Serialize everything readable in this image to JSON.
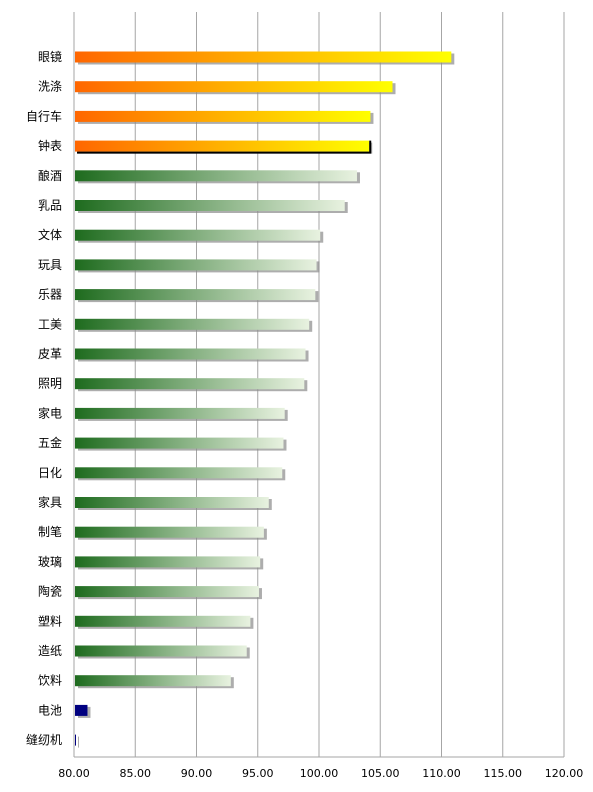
{
  "chart_data": {
    "type": "bar",
    "orientation": "horizontal",
    "categories": [
      "眼镜",
      "洗涤",
      "自行车",
      "钟表",
      "酿酒",
      "乳品",
      "文体",
      "玩具",
      "乐器",
      "工美",
      "皮革",
      "照明",
      "家电",
      "五金",
      "日化",
      "家具",
      "制笔",
      "玻璃",
      "陶瓷",
      "塑料",
      "造纸",
      "饮料",
      "电池",
      "缝纫机"
    ],
    "values": [
      110.8,
      106.0,
      104.2,
      104.1,
      103.1,
      102.1,
      100.1,
      99.8,
      99.7,
      99.2,
      98.9,
      98.8,
      97.2,
      97.1,
      97.0,
      95.9,
      95.5,
      95.2,
      95.1,
      94.4,
      94.1,
      92.8,
      81.1,
      80.1
    ],
    "xlim": [
      80,
      120
    ],
    "x_ticks": [
      "80.00",
      "85.00",
      "90.00",
      "95.00",
      "100.00",
      "105.00",
      "110.00",
      "115.00",
      "120.00"
    ],
    "grid": "vertical",
    "title": "",
    "xlabel": "",
    "ylabel": "",
    "colors": {
      "orange_start": "#ff6600",
      "orange_end": "#ffff00",
      "green_start": "#1e6b1e",
      "green_end": "#e8f2e0",
      "navy": "#000080",
      "shadow": "#8a8a8a",
      "grid": "#a6a6a6"
    },
    "highlight_style": {
      "眼镜": "orange",
      "洗涤": "orange",
      "自行车": "orange",
      "钟表": "orange-outlined",
      "电池": "navy",
      "缝纫机": "navy"
    }
  }
}
